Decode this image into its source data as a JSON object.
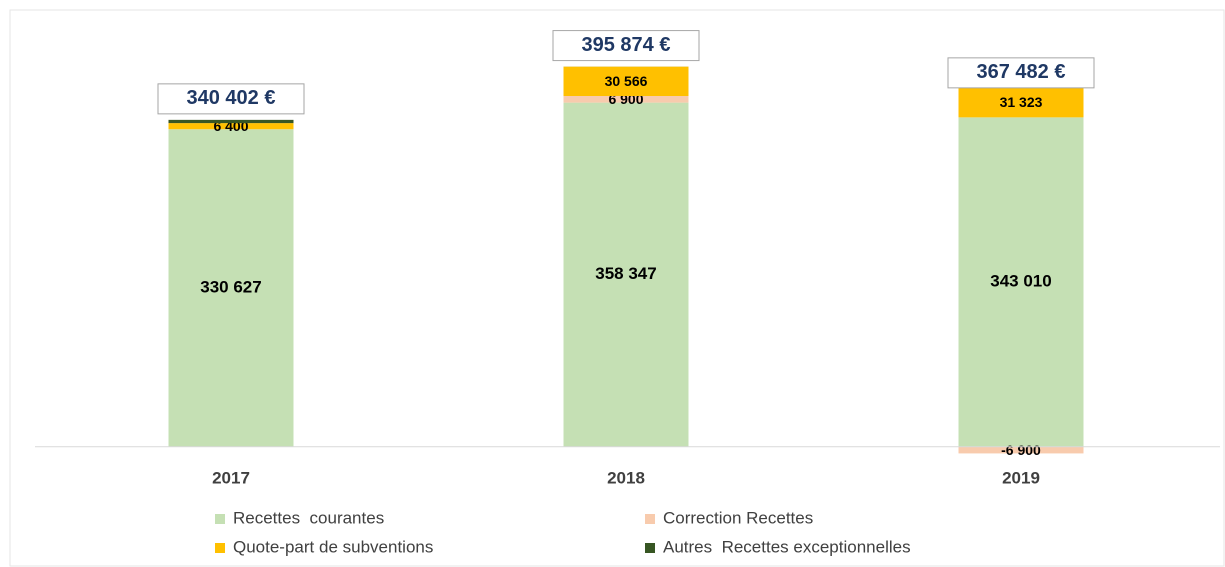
{
  "chart_data": {
    "type": "stacked_bar",
    "categories": [
      "2017",
      "2018",
      "2019"
    ],
    "series": [
      {
        "name": "Recettes  courantes",
        "color": "#c5e0b4",
        "values": [
          330627,
          358347,
          343010
        ],
        "value_labels": [
          "330 627",
          "358 347",
          "343 010"
        ]
      },
      {
        "name": "Correction Recettes",
        "color": "#f8cbad",
        "values": [
          0,
          6900,
          -6900
        ],
        "value_labels": [
          null,
          "6 900",
          "-6 900"
        ]
      },
      {
        "name": "Quote-part de subventions",
        "color": "#ffc000",
        "values": [
          6400,
          30566,
          31323
        ],
        "value_labels": [
          "6 400",
          "30 566",
          "31 323"
        ]
      },
      {
        "name": "Autres  Recettes exceptionnelles",
        "color": "#375623",
        "values": [
          3375,
          61,
          49
        ],
        "value_labels": [
          null,
          null,
          null
        ]
      }
    ],
    "totals": [
      340402,
      395874,
      367482
    ],
    "total_labels": [
      "340 402 €",
      "395 874 €",
      "367 482 €"
    ],
    "ylim": [
      -20000,
      460000
    ]
  }
}
